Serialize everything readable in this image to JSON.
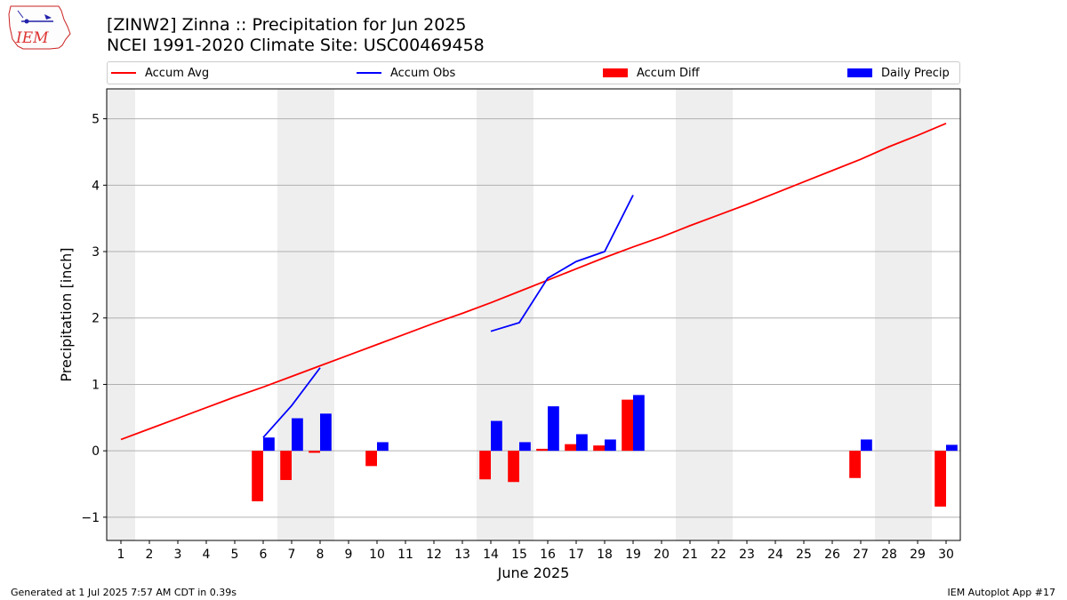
{
  "header": {
    "title_line1": "[ZINW2] Zinna :: Precipitation for Jun 2025",
    "title_line2": "NCEI 1991-2020 Climate Site: USC00469458"
  },
  "logo": {
    "text": "IEM"
  },
  "footer": {
    "left": "Generated at 1 Jul 2025 7:57 AM CDT in 0.39s",
    "right": "IEM Autoplot App #17"
  },
  "colors": {
    "accum_avg": "#ff0000",
    "accum_obs": "#0000ff",
    "accum_diff": "#ff0000",
    "daily_precip": "#0000ff",
    "weekend_shade": "#eeeeee",
    "grid": "#b0b0b0"
  },
  "chart_data": {
    "type": "bar",
    "xlabel": "June 2025",
    "ylabel": "Precipitation [inch]",
    "ylim": [
      -1.35,
      5.45
    ],
    "yticks": [
      -1,
      0,
      1,
      2,
      3,
      4,
      5
    ],
    "ytick_labels": [
      "−1",
      "0",
      "1",
      "2",
      "3",
      "4",
      "5"
    ],
    "grid": "horizontal",
    "legend_position": "top",
    "days": [
      1,
      2,
      3,
      4,
      5,
      6,
      7,
      8,
      9,
      10,
      11,
      12,
      13,
      14,
      15,
      16,
      17,
      18,
      19,
      20,
      21,
      22,
      23,
      24,
      25,
      26,
      27,
      28,
      29,
      30
    ],
    "weekend_days": [
      1,
      7,
      8,
      14,
      15,
      21,
      22,
      28,
      29
    ],
    "series": [
      {
        "name": "Accum Avg",
        "kind": "line",
        "color": "#ff0000",
        "x": [
          1,
          2,
          3,
          4,
          5,
          6,
          7,
          8,
          9,
          10,
          11,
          12,
          13,
          14,
          15,
          16,
          17,
          18,
          19,
          20,
          21,
          22,
          23,
          24,
          25,
          26,
          27,
          28,
          29,
          30
        ],
        "values": [
          0.17,
          0.33,
          0.49,
          0.65,
          0.81,
          0.96,
          1.12,
          1.28,
          1.44,
          1.6,
          1.76,
          1.92,
          2.07,
          2.23,
          2.4,
          2.57,
          2.74,
          2.91,
          3.07,
          3.22,
          3.39,
          3.55,
          3.71,
          3.88,
          4.05,
          4.22,
          4.39,
          4.58,
          4.75,
          4.93
        ]
      },
      {
        "name": "Accum Obs",
        "kind": "line",
        "color": "#0000ff",
        "segments": [
          {
            "x": [
              6,
              7,
              8
            ],
            "values": [
              0.2,
              0.68,
              1.25
            ]
          },
          {
            "x": [
              14,
              15,
              16,
              17,
              18,
              19
            ],
            "values": [
              1.8,
              1.93,
              2.6,
              2.85,
              3.0,
              3.85
            ]
          }
        ]
      },
      {
        "name": "Accum Diff",
        "kind": "bar",
        "color": "#ff0000",
        "x": [
          6,
          7,
          8,
          10,
          14,
          15,
          16,
          17,
          18,
          19,
          27,
          30
        ],
        "values": [
          -0.76,
          -0.44,
          -0.03,
          -0.23,
          -0.43,
          -0.47,
          0.03,
          0.1,
          0.08,
          0.77,
          -0.41,
          -0.84
        ]
      },
      {
        "name": "Daily Precip",
        "kind": "bar",
        "color": "#0000ff",
        "x": [
          6,
          7,
          8,
          10,
          14,
          15,
          16,
          17,
          18,
          19,
          27,
          30
        ],
        "values": [
          0.2,
          0.49,
          0.56,
          0.13,
          0.45,
          0.13,
          0.67,
          0.25,
          0.17,
          0.84,
          0.17,
          0.09
        ]
      }
    ]
  }
}
